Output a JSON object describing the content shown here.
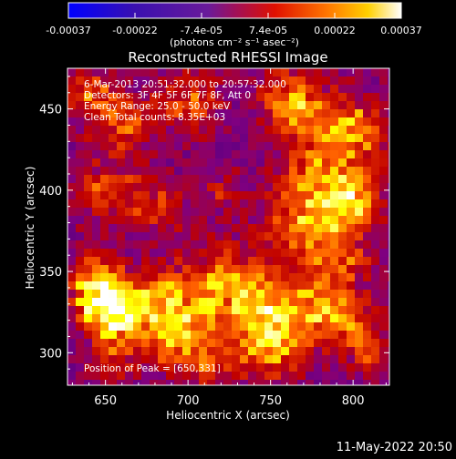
{
  "chart_data": {
    "type": "heatmap",
    "title": "Reconstructed RHESSI Image",
    "colorbar": {
      "ticks": [
        "-0.00037",
        "-0.00022",
        "-7.4e-05",
        "7.4e-05",
        "0.00022",
        "0.00037"
      ],
      "range": [
        -0.00037,
        0.00037
      ],
      "unit_label": "(photons cm⁻² s⁻¹ asec⁻²)",
      "colors": [
        "#0000ff",
        "#4b0082",
        "#800080",
        "#c00000",
        "#ff6000",
        "#ffff00",
        "#ffffff"
      ]
    },
    "xlabel": "Heliocentric X (arcsec)",
    "ylabel": "Heliocentric Y (arcsec)",
    "xlim": [
      627,
      822
    ],
    "ylim": [
      280,
      475
    ],
    "xticks": [
      650,
      700,
      750,
      800
    ],
    "yticks": [
      300,
      350,
      400,
      450
    ],
    "annotations": [
      "6-Mar-2013 20:51:32.000 to 20:57:32.000",
      "Detectors: 3F 4F 5F 6F 7F 8F, Att 0",
      "Energy Range: 25.0 - 50.0 keV",
      "Clean    Total counts: 8.35E+03",
      "Position of Peak = [650,331]"
    ],
    "peak": [
      650,
      331
    ],
    "timestamp": "11-May-2022 20:50"
  }
}
